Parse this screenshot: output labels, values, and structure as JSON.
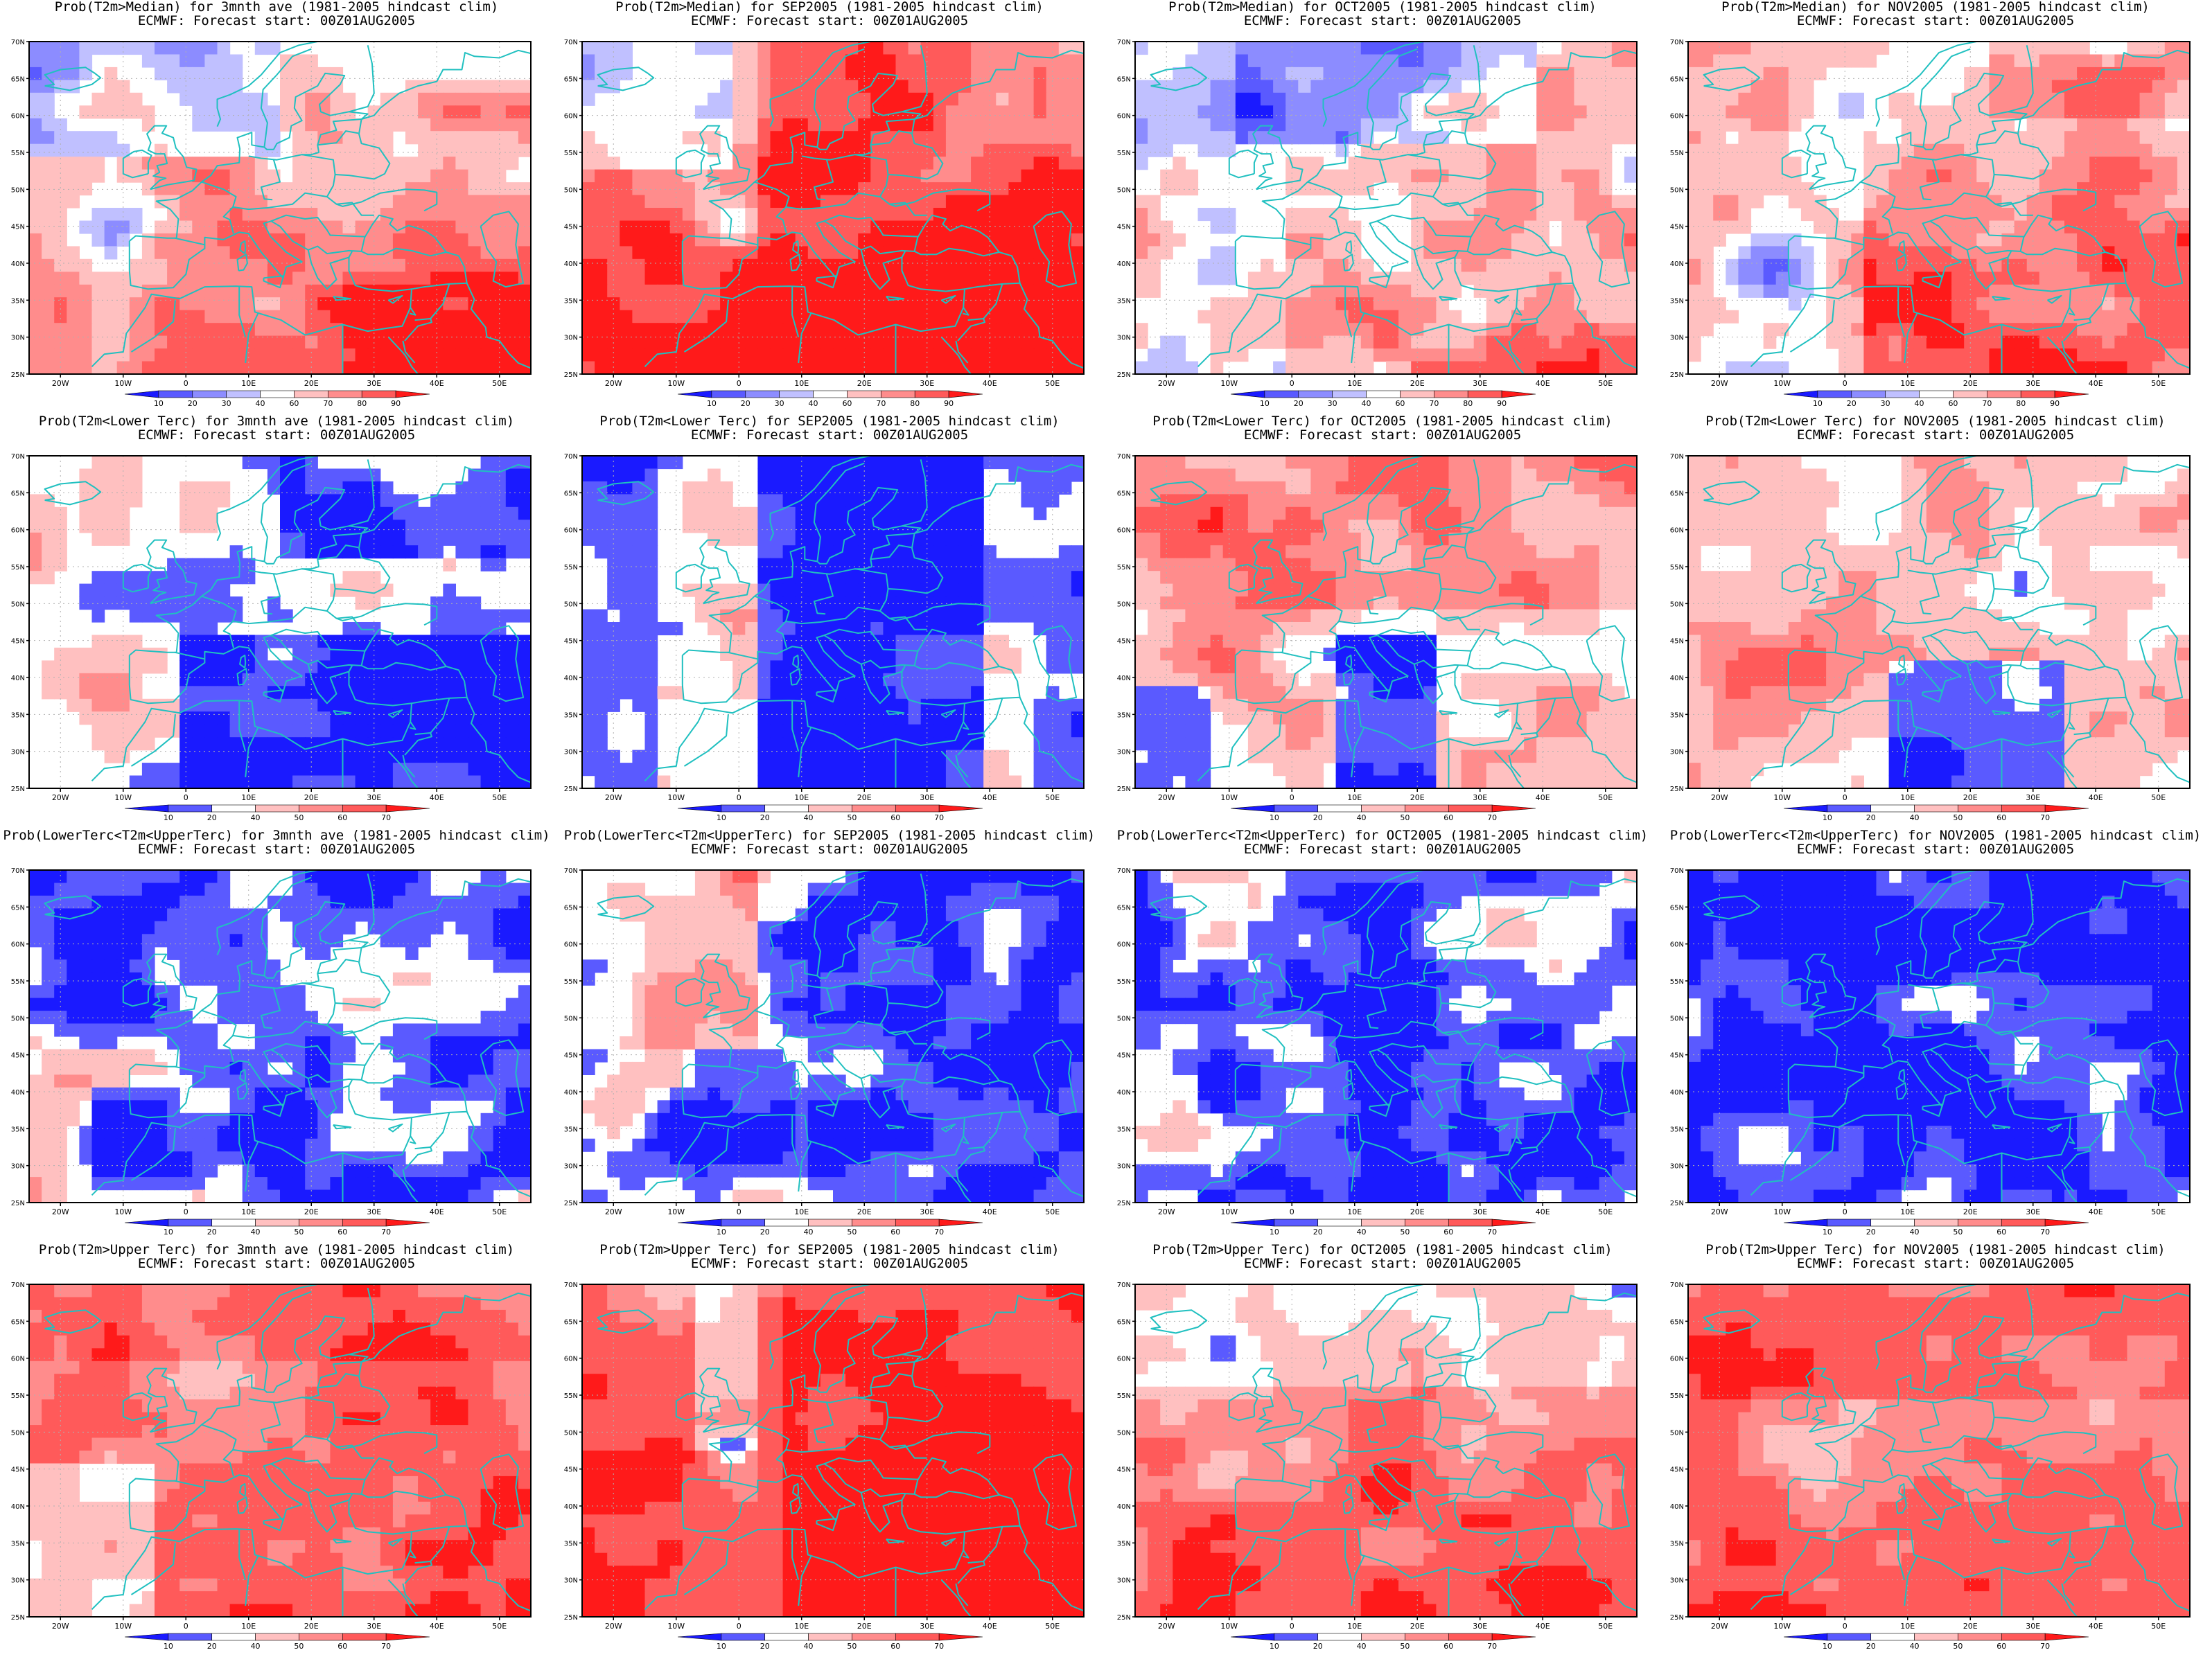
{
  "subtitle": "ECMWF: Forecast start: 00Z01AUG2005",
  "rows": [
    {
      "key": "median",
      "palette": "median",
      "titles": [
        "Prob(T2m>Median) for 3mnth ave (1981-2005 hindcast clim)",
        "Prob(T2m>Median) for SEP2005 (1981-2005 hindcast clim)",
        "Prob(T2m>Median) for OCT2005 (1981-2005 hindcast clim)",
        "Prob(T2m>Median) for NOV2005 (1981-2005 hindcast clim)"
      ],
      "scenes": [
        "warm",
        "warm_strong",
        "mixed_cool",
        "warm_sw_cool"
      ]
    },
    {
      "key": "lower",
      "palette": "tercile",
      "titles": [
        "Prob(T2m<Lower Terc) for 3mnth ave (1981-2005 hindcast clim)",
        "Prob(T2m<Lower Terc) for SEP2005 (1981-2005 hindcast clim)",
        "Prob(T2m<Lower Terc) for OCT2005 (1981-2005 hindcast clim)",
        "Prob(T2m<Lower Terc) for NOV2005 (1981-2005 hindcast clim)"
      ],
      "scenes": [
        "blue_se",
        "blue_wide",
        "pink_north",
        "pink_west"
      ]
    },
    {
      "key": "middle",
      "palette": "tercile",
      "titles": [
        "Prob(LowerTerc<T2m<UpperTerc) for 3mnth ave (1981-2005 hindcast clim)",
        "Prob(LowerTerc<T2m<UpperTerc) for SEP2005 (1981-2005 hindcast clim)",
        "Prob(LowerTerc<T2m<UpperTerc) for OCT2005 (1981-2005 hindcast clim)",
        "Prob(LowerTerc<T2m<UpperTerc) for NOV2005 (1981-2005 hindcast clim)"
      ],
      "scenes": [
        "blue_mostly",
        "blue_east",
        "blue_mostly",
        "blue_full"
      ]
    },
    {
      "key": "upper",
      "palette": "tercile",
      "titles": [
        "Prob(T2m>Upper Terc) for 3mnth ave (1981-2005 hindcast clim)",
        "Prob(T2m>Upper Terc) for SEP2005 (1981-2005 hindcast clim)",
        "Prob(T2m>Upper Terc) for OCT2005 (1981-2005 hindcast clim)",
        "Prob(T2m>Upper Terc) for NOV2005 (1981-2005 hindcast clim)"
      ],
      "scenes": [
        "red_upper",
        "red_upper2",
        "red_upper3",
        "red_upper4"
      ]
    }
  ],
  "axis": {
    "lat_labels": [
      "70N",
      "65N",
      "60N",
      "55N",
      "50N",
      "45N",
      "40N",
      "35N",
      "30N",
      "25N"
    ],
    "lon_labels": [
      "20W",
      "10W",
      "0",
      "10E",
      "20E",
      "30E",
      "40E",
      "50E"
    ]
  },
  "palettes": {
    "median": {
      "labels": [
        "10",
        "20",
        "30",
        "40",
        "60",
        "70",
        "80",
        "90"
      ],
      "colors": [
        "#1a1aff",
        "#5a5aff",
        "#8c8cff",
        "#c0c0ff",
        "#ffffff",
        "#ffc0c0",
        "#ff8c8c",
        "#ff5a5a",
        "#ff1a1a"
      ]
    },
    "tercile": {
      "labels": [
        "10",
        "20",
        "40",
        "50",
        "60",
        "70"
      ],
      "colors": [
        "#1a1aff",
        "#5a5aff",
        "#ffffff",
        "#ffc0c0",
        "#ff8c8c",
        "#ff5a5a",
        "#ff1a1a"
      ]
    }
  },
  "coast_color": "#20c0c0"
}
